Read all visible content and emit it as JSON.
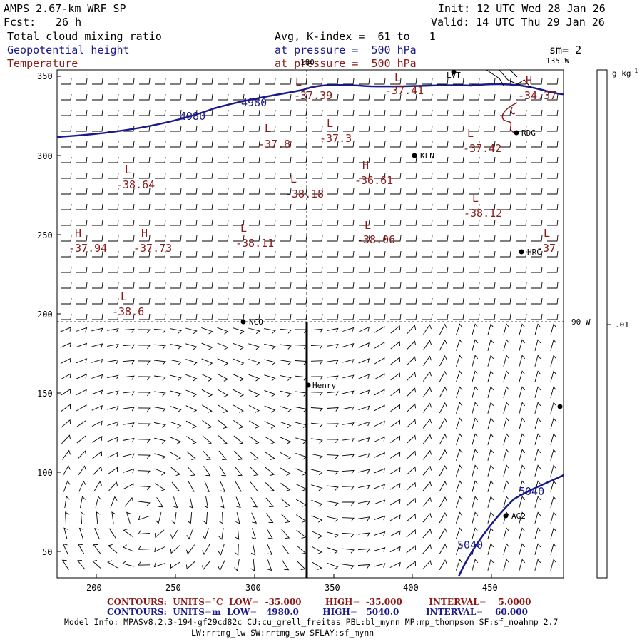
{
  "header": {
    "model_title": "AMPS 2.67-km WRF SP",
    "fcst_label": "Fcst:",
    "fcst_value": "26 h",
    "init": "Init: 12 UTC Wed 28 Jan 26",
    "valid": "Valid: 14 UTC Thu 29 Jan 26",
    "field1": "Total cloud mixing ratio",
    "field2": "Geopotential height",
    "field3": "Temperature",
    "avg": "Avg, K-index =  61 to   1",
    "pressure1": "at pressure =  500 hPa",
    "pressure2": "at pressure =  500 hPa",
    "smoothing": "sm= 2"
  },
  "axes": {
    "x_ticks": [
      "200",
      "250",
      "300",
      "350",
      "400",
      "450"
    ],
    "y_ticks": [
      "350",
      "300",
      "250",
      "200",
      "150",
      "100",
      "50"
    ],
    "lon_top": "180",
    "lon_right_top": "135 W",
    "lon_right_mid": "90 W"
  },
  "colorbar": {
    "unit": "g kg",
    "unit_exp": "-1",
    "tick": ".01"
  },
  "height_labels": [
    "4980",
    "4980",
    "5040",
    "5040"
  ],
  "temp_extrema": [
    {
      "kind": "L",
      "value": "-37.39"
    },
    {
      "kind": "L",
      "value": "-37.41"
    },
    {
      "kind": "H",
      "value": "-34.37"
    },
    {
      "kind": "L",
      "value": "-37.8"
    },
    {
      "kind": "L",
      "value": "-37.3"
    },
    {
      "kind": "L",
      "value": "-37.42"
    },
    {
      "kind": "L",
      "value": "-38.64"
    },
    {
      "kind": "L",
      "value": "-38.18"
    },
    {
      "kind": "H",
      "value": "-36.61"
    },
    {
      "kind": "L",
      "value": "-38.12"
    },
    {
      "kind": "H",
      "value": "-37.94"
    },
    {
      "kind": "H",
      "value": "-37.73"
    },
    {
      "kind": "L",
      "value": "-38.11"
    },
    {
      "kind": "L",
      "value": "-38.06"
    },
    {
      "kind": "L",
      "value": "-37"
    },
    {
      "kind": "L",
      "value": "-38.6"
    }
  ],
  "stations": [
    "LVT",
    "RDG",
    "KLN",
    "HRC",
    "NCO",
    "Henry",
    "AG2"
  ],
  "footer": {
    "temp_contours": "CONTOURS:  UNITS=°C  LOW=  -35.000        HIGH=  -35.000         INTERVAL=    5.0000",
    "height_contours": "CONTOURS:  UNITS=m  LOW=   4980.0        HIGH=   5040.0         INTERVAL=    60.000",
    "model_info": "Model Info: MPASv8.2.3-194-gf29cd82c CU:cu_grell_freitas PBL:bl_mynn MP:mp_thompson SF:sf_noahmp 2.7",
    "model_info2": "LW:rrtmg_lw SW:rrtmg_sw SFLAY:sf_mynn"
  },
  "colors": {
    "height_contour": "#1a1a8c",
    "temperature": "#8b1a1a",
    "barbs": "#000000"
  }
}
